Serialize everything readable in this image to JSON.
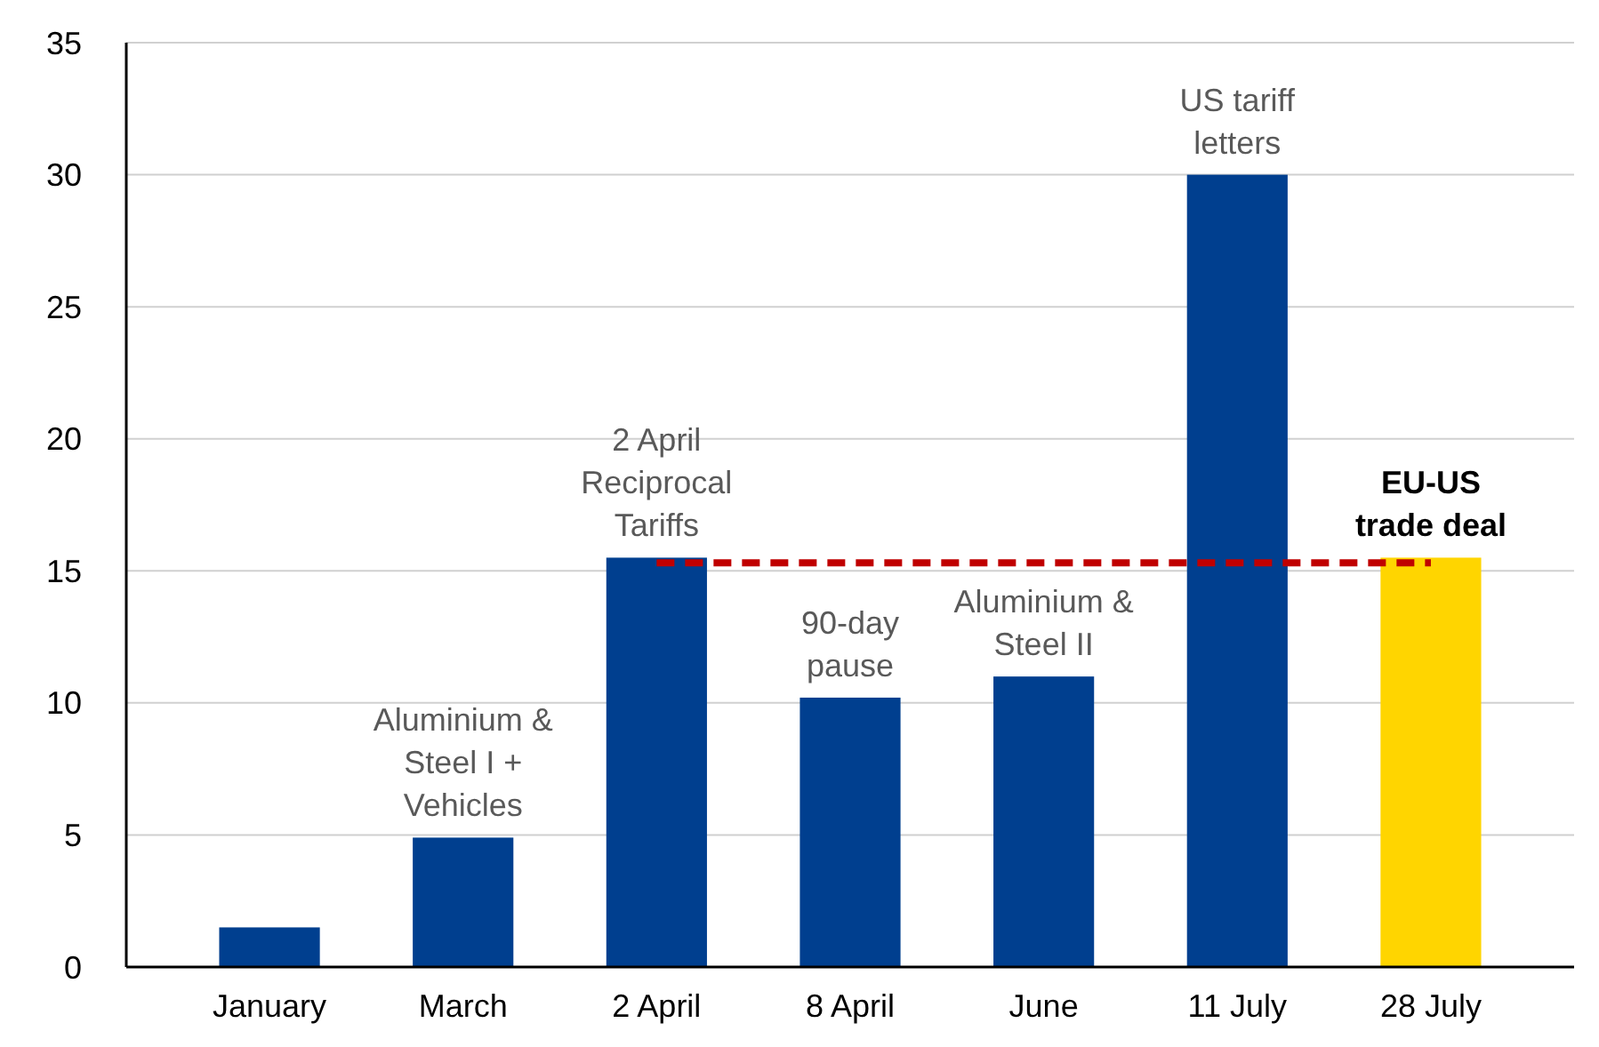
{
  "chart_data": {
    "type": "bar",
    "categories": [
      "January",
      "March",
      "2 April",
      "8 April",
      "June",
      "11 July",
      "28 July"
    ],
    "values": [
      1.5,
      4.9,
      15.5,
      10.2,
      11.0,
      30,
      15.5
    ],
    "colors": [
      "#003f8f",
      "#003f8f",
      "#003f8f",
      "#003f8f",
      "#003f8f",
      "#003f8f",
      "#ffd500"
    ],
    "series": [
      {
        "type": "line",
        "color": "#c00000",
        "line_style": "dashed",
        "marker": "none",
        "values": [
          null,
          null,
          15.3,
          15.3,
          15.3,
          15.3,
          15.3
        ]
      }
    ],
    "ylim": [
      0,
      35
    ],
    "yticks": [
      0,
      5,
      10,
      15,
      20,
      25,
      30,
      35
    ],
    "grid": "y",
    "annotations": [
      {
        "text": "Aluminium & Steel I + Vehicles",
        "x": "March",
        "y": 4.9
      },
      {
        "text": "2 April Reciprocal Tariffs",
        "x": "2 April",
        "y": 15.5
      },
      {
        "text": "90-day pause",
        "x": "8 April",
        "y": 10.2
      },
      {
        "text": "Aluminium & Steel II",
        "x": "June",
        "y": 11.0
      },
      {
        "text": "US tariff letters",
        "x": "11 July",
        "y": 30
      },
      {
        "text": "EU-US trade deal",
        "x": "28 July",
        "y": 15.5
      }
    ]
  }
}
